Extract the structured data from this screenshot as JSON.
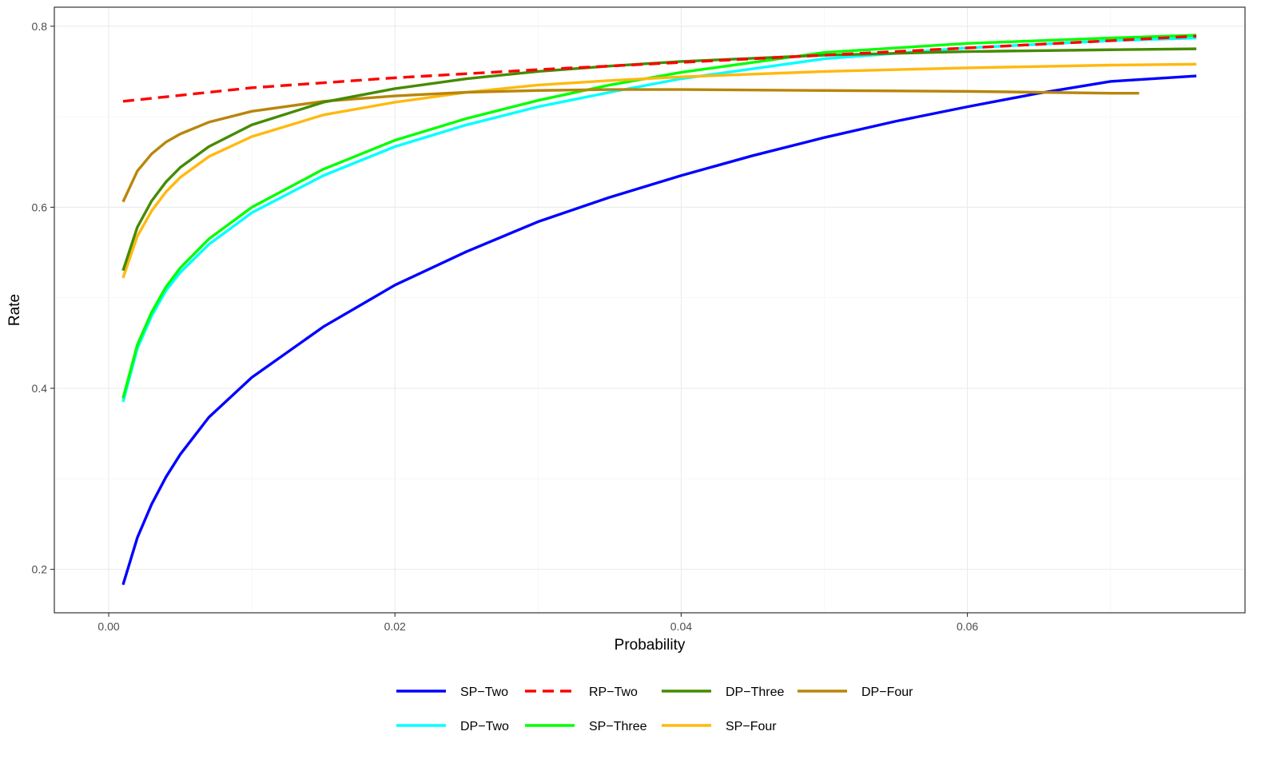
{
  "chart_data": {
    "type": "line",
    "xlabel": "Probability",
    "ylabel": "Rate",
    "xlim": [
      -0.0038,
      0.0794
    ],
    "ylim": [
      0.152,
      0.821
    ],
    "x_ticks": [
      0.0,
      0.02,
      0.04,
      0.06
    ],
    "x_tick_labels": [
      "0.00",
      "0.02",
      "0.04",
      "0.06"
    ],
    "y_ticks": [
      0.2,
      0.4,
      0.6,
      0.8
    ],
    "y_tick_labels": [
      "0.2",
      "0.4",
      "0.6",
      "0.8"
    ],
    "grid": true,
    "legend_position": "bottom",
    "series": [
      {
        "name": "SP−Two",
        "color": "#0000ff",
        "dash": "solid",
        "x": [
          0.001,
          0.002,
          0.003,
          0.004,
          0.005,
          0.007,
          0.01,
          0.015,
          0.02,
          0.025,
          0.03,
          0.035,
          0.04,
          0.045,
          0.05,
          0.055,
          0.06,
          0.065,
          0.07,
          0.076
        ],
        "y": [
          0.183,
          0.235,
          0.272,
          0.302,
          0.327,
          0.368,
          0.412,
          0.468,
          0.514,
          0.551,
          0.584,
          0.611,
          0.635,
          0.657,
          0.677,
          0.695,
          0.711,
          0.726,
          0.739,
          0.745
        ]
      },
      {
        "name": "RP−Two",
        "color": "#ff0000",
        "dash": "dashed",
        "x": [
          0.001,
          0.01,
          0.02,
          0.03,
          0.04,
          0.05,
          0.06,
          0.07,
          0.076
        ],
        "y": [
          0.717,
          0.732,
          0.743,
          0.752,
          0.76,
          0.768,
          0.776,
          0.784,
          0.789
        ]
      },
      {
        "name": "DP−Three",
        "color": "#458b00",
        "dash": "solid",
        "x": [
          0.001,
          0.002,
          0.003,
          0.004,
          0.005,
          0.007,
          0.01,
          0.015,
          0.02,
          0.025,
          0.03,
          0.035,
          0.04,
          0.05,
          0.06,
          0.07,
          0.076
        ],
        "y": [
          0.53,
          0.578,
          0.607,
          0.628,
          0.644,
          0.667,
          0.691,
          0.716,
          0.731,
          0.742,
          0.75,
          0.756,
          0.761,
          0.768,
          0.772,
          0.774,
          0.775
        ]
      },
      {
        "name": "DP−Four",
        "color": "#b8860b",
        "dash": "solid",
        "x": [
          0.001,
          0.002,
          0.003,
          0.004,
          0.005,
          0.007,
          0.01,
          0.015,
          0.02,
          0.025,
          0.03,
          0.035,
          0.04,
          0.05,
          0.06,
          0.07,
          0.072
        ],
        "y": [
          0.606,
          0.64,
          0.659,
          0.672,
          0.681,
          0.694,
          0.706,
          0.717,
          0.723,
          0.727,
          0.729,
          0.73,
          0.73,
          0.729,
          0.728,
          0.726,
          0.726
        ]
      },
      {
        "name": "DP−Two",
        "color": "#00ffff",
        "dash": "solid",
        "x": [
          0.001,
          0.002,
          0.003,
          0.004,
          0.005,
          0.007,
          0.01,
          0.015,
          0.02,
          0.025,
          0.03,
          0.035,
          0.04,
          0.05,
          0.06,
          0.07,
          0.076
        ],
        "y": [
          0.385,
          0.444,
          0.48,
          0.508,
          0.528,
          0.559,
          0.594,
          0.635,
          0.667,
          0.691,
          0.711,
          0.727,
          0.742,
          0.764,
          0.776,
          0.784,
          0.787
        ]
      },
      {
        "name": "SP−Three",
        "color": "#00ff00",
        "dash": "solid",
        "x": [
          0.001,
          0.002,
          0.003,
          0.004,
          0.005,
          0.007,
          0.01,
          0.015,
          0.02,
          0.025,
          0.03,
          0.035,
          0.04,
          0.05,
          0.06,
          0.07,
          0.076
        ],
        "y": [
          0.389,
          0.448,
          0.484,
          0.512,
          0.533,
          0.565,
          0.6,
          0.642,
          0.674,
          0.698,
          0.718,
          0.735,
          0.749,
          0.771,
          0.781,
          0.787,
          0.79
        ]
      },
      {
        "name": "SP−Four",
        "color": "#ffb90f",
        "dash": "solid",
        "x": [
          0.001,
          0.002,
          0.003,
          0.004,
          0.005,
          0.007,
          0.01,
          0.015,
          0.02,
          0.025,
          0.03,
          0.035,
          0.04,
          0.05,
          0.06,
          0.07,
          0.076
        ],
        "y": [
          0.522,
          0.568,
          0.596,
          0.617,
          0.633,
          0.656,
          0.678,
          0.702,
          0.716,
          0.727,
          0.735,
          0.74,
          0.744,
          0.75,
          0.754,
          0.757,
          0.758
        ]
      }
    ],
    "legend_rows": [
      [
        "SP−Two",
        "RP−Two",
        "DP−Three",
        "DP−Four"
      ],
      [
        "DP−Two",
        "SP−Three",
        "SP−Four"
      ]
    ]
  }
}
